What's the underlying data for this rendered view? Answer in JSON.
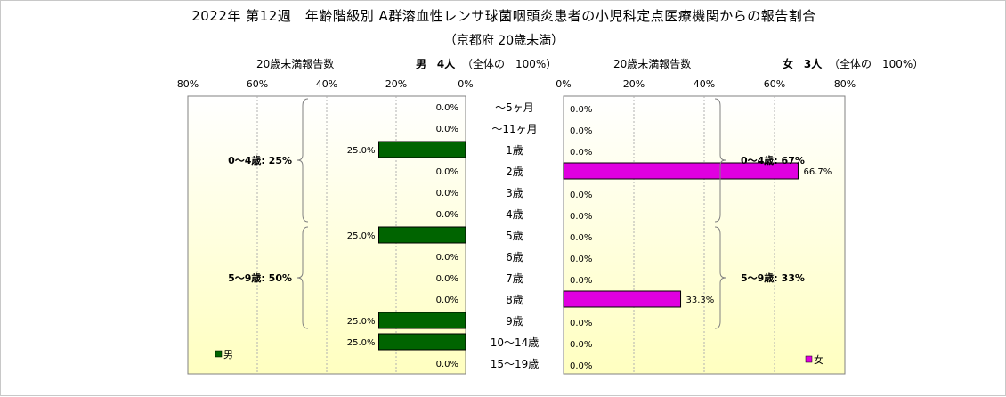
{
  "title": "2022年 第12週　年齢階級別 A群溶血性レンサ球菌咽頭炎患者の小児科定点医療機関からの報告割合",
  "subtitle": "（京都府 20歳未満）",
  "male_header": {
    "count_label": "20歳未満報告数",
    "sex": "男",
    "count": "4人",
    "total": "（全体の　100%）"
  },
  "female_header": {
    "count_label": "20歳未満報告数",
    "sex": "女",
    "count": "3人",
    "total": "（全体の　100%）"
  },
  "legend": {
    "male": "男",
    "female": "女"
  },
  "colors": {
    "male": "#006400",
    "female": "#e000e0",
    "panel_top": "#ffffff",
    "panel_bottom": "#ffffc0"
  },
  "chart_data": {
    "type": "bar",
    "orientation": "horizontal",
    "layout": "population-pyramid",
    "categories": [
      "～5ヶ月",
      "～11ヶ月",
      "1歳",
      "2歳",
      "3歳",
      "4歳",
      "5歳",
      "6歳",
      "7歳",
      "8歳",
      "9歳",
      "10～14歳",
      "15～19歳"
    ],
    "series": [
      {
        "name": "男",
        "values": [
          0,
          0,
          25,
          0,
          0,
          0,
          25,
          0,
          0,
          0,
          25,
          25,
          0
        ],
        "labels": [
          "0.0%",
          "0.0%",
          "25.0%",
          "0.0%",
          "0.0%",
          "0.0%",
          "25.0%",
          "0.0%",
          "0.0%",
          "0.0%",
          "25.0%",
          "25.0%",
          "0.0%"
        ]
      },
      {
        "name": "女",
        "values": [
          0,
          0,
          0,
          66.7,
          0,
          0,
          0,
          0,
          0,
          33.3,
          0,
          0,
          0
        ],
        "labels": [
          "0.0%",
          "0.0%",
          "0.0%",
          "66.7%",
          "0.0%",
          "0.0%",
          "0.0%",
          "0.0%",
          "0.0%",
          "33.3%",
          "0.0%",
          "0.0%",
          "0.0%"
        ]
      }
    ],
    "xlim": [
      0,
      80
    ],
    "ticks": [
      "0%",
      "20%",
      "40%",
      "60%",
      "80%"
    ],
    "tick_values": [
      0,
      20,
      40,
      60,
      80
    ],
    "groups": {
      "male": [
        {
          "label": "0～4歳: 25%",
          "from": 0,
          "to": 5
        },
        {
          "label": "5～9歳: 50%",
          "from": 6,
          "to": 10
        }
      ],
      "female": [
        {
          "label": "0～4歳: 67%",
          "from": 0,
          "to": 5
        },
        {
          "label": "5～9歳: 33%",
          "from": 6,
          "to": 10
        }
      ]
    }
  }
}
